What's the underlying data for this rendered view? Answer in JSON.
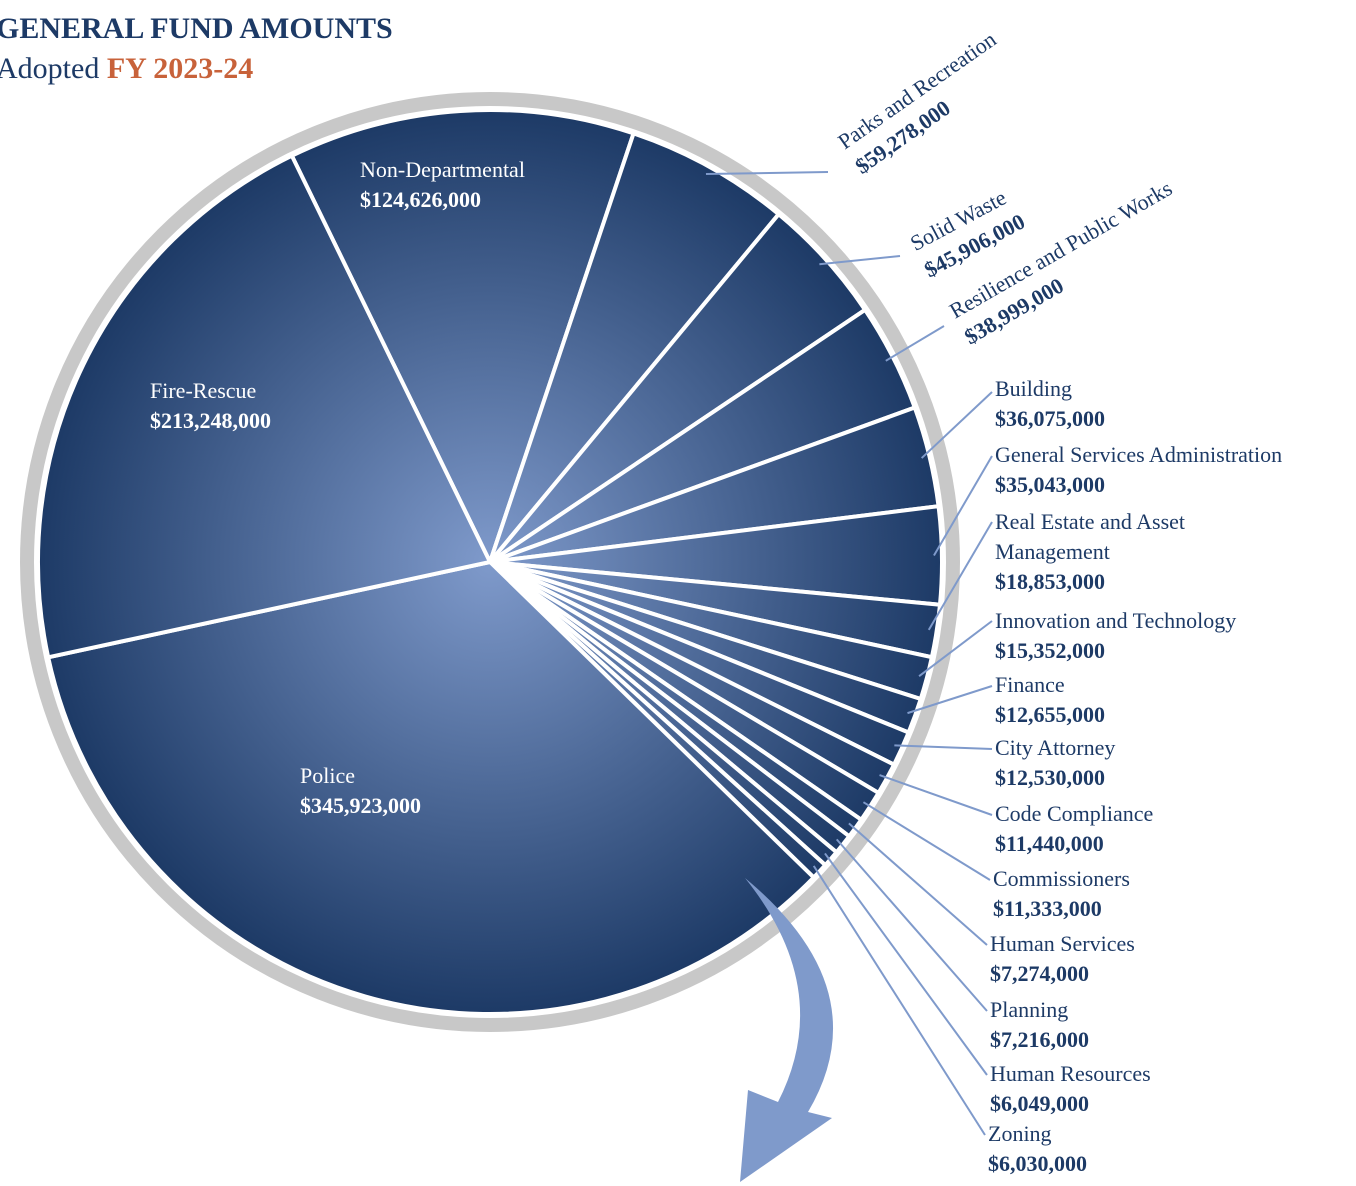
{
  "chart_data": {
    "type": "pie",
    "title": "GENERAL FUND AMOUNTS",
    "subtitle": "Adopted",
    "subtitle_highlight": "FY 2023-24",
    "categories": [
      "Non-Departmental",
      "Parks and Recreation",
      "Solid Waste",
      "Resilience and Public Works",
      "Building",
      "General Services Administration",
      "Real Estate and Asset Management",
      "Innovation and Technology",
      "Finance",
      "City Attorney",
      "Code Compliance",
      "Commissioners",
      "Human Services",
      "Planning",
      "Human Resources",
      "Zoning",
      "Police",
      "Fire-Rescue"
    ],
    "values": [
      124626000,
      59278000,
      45906000,
      38999000,
      36075000,
      35043000,
      18853000,
      15352000,
      12655000,
      12530000,
      11440000,
      11333000,
      7274000,
      7216000,
      6049000,
      6030000,
      345923000,
      213248000
    ],
    "value_labels": [
      "$124,626,000",
      "$59,278,000",
      "$45,906,000",
      "$38,999,000",
      "$36,075,000",
      "$35,043,000",
      "$18,853,000",
      "$15,352,000",
      "$12,655,000",
      "$12,530,000",
      "$11,440,000",
      "$11,333,000",
      "$7,274,000",
      "$7,216,000",
      "$6,049,000",
      "$6,030,000",
      "$345,923,000",
      "$213,248,000"
    ],
    "color": "#1d3a66"
  }
}
